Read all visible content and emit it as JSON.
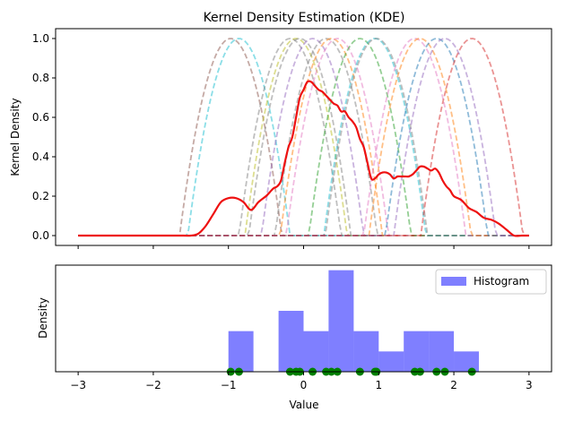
{
  "chart_data": [
    {
      "type": "line",
      "title": "Kernel Density Estimation (KDE)",
      "xlabel": "",
      "ylabel": "Kernel Density",
      "xlim": [
        -3.3,
        3.3
      ],
      "ylim": [
        -0.05,
        1.05
      ],
      "x_ticks": [
        -3,
        -2,
        -1,
        0,
        1,
        2,
        3
      ],
      "x_tick_labels_shown": false,
      "y_ticks": [
        0.0,
        0.2,
        0.4,
        0.6,
        0.8,
        1.0
      ],
      "y_tick_labels": [
        "0.0",
        "0.2",
        "0.4",
        "0.6",
        "0.8",
        "1.0"
      ],
      "grid": false,
      "kernel": {
        "shape": "epanechnikov",
        "bandwidth": 0.68,
        "line_style": "dashed",
        "alpha": 0.5,
        "samples": [
          -0.97,
          -0.86,
          -0.18,
          -0.1,
          -0.05,
          0.12,
          0.3,
          0.37,
          0.45,
          0.75,
          0.95,
          0.97,
          1.48,
          1.55,
          1.77,
          1.88,
          2.24
        ],
        "colors": [
          "#8c564b",
          "#17becf",
          "#7f7f7f",
          "#bcbd22",
          "#7f7f7f",
          "#9467bd",
          "#7f7f7f",
          "#ff7f0e",
          "#e377c2",
          "#2ca02c",
          "#17becf",
          "#7f7f7f",
          "#e377c2",
          "#ff7f0e",
          "#1f77b4",
          "#9467bd",
          "#d62728"
        ]
      },
      "density_curve": {
        "color": "#ee1111",
        "x": [
          -3.0,
          -2.5,
          -2.0,
          -1.6,
          -1.5,
          -1.4,
          -1.3,
          -1.2,
          -1.1,
          -1.0,
          -0.9,
          -0.8,
          -0.7,
          -0.6,
          -0.5,
          -0.45,
          -0.4,
          -0.35,
          -0.3,
          -0.25,
          -0.2,
          -0.15,
          -0.1,
          -0.05,
          0.0,
          0.05,
          0.1,
          0.15,
          0.2,
          0.25,
          0.3,
          0.35,
          0.4,
          0.45,
          0.5,
          0.55,
          0.6,
          0.65,
          0.7,
          0.75,
          0.8,
          0.85,
          0.9,
          0.95,
          1.0,
          1.05,
          1.1,
          1.15,
          1.2,
          1.25,
          1.3,
          1.35,
          1.4,
          1.45,
          1.5,
          1.55,
          1.6,
          1.65,
          1.7,
          1.75,
          1.8,
          1.85,
          1.9,
          1.95,
          2.0,
          2.1,
          2.2,
          2.3,
          2.4,
          2.5,
          2.6,
          2.7,
          2.8,
          2.9,
          3.0
        ],
        "y": [
          0.0,
          0.0,
          0.0,
          0.0,
          0.0,
          0.01,
          0.05,
          0.11,
          0.17,
          0.19,
          0.19,
          0.17,
          0.13,
          0.17,
          0.2,
          0.22,
          0.24,
          0.25,
          0.28,
          0.37,
          0.45,
          0.5,
          0.6,
          0.7,
          0.74,
          0.78,
          0.78,
          0.76,
          0.74,
          0.73,
          0.71,
          0.69,
          0.67,
          0.66,
          0.63,
          0.63,
          0.6,
          0.58,
          0.55,
          0.49,
          0.45,
          0.37,
          0.29,
          0.29,
          0.31,
          0.32,
          0.32,
          0.31,
          0.29,
          0.3,
          0.3,
          0.3,
          0.3,
          0.31,
          0.33,
          0.35,
          0.35,
          0.34,
          0.33,
          0.34,
          0.32,
          0.28,
          0.25,
          0.23,
          0.2,
          0.18,
          0.14,
          0.12,
          0.09,
          0.08,
          0.06,
          0.03,
          0.0,
          0.0,
          0.0
        ]
      }
    },
    {
      "type": "bar",
      "xlabel": "Value",
      "ylabel": "Density",
      "xlim": [
        -3.3,
        3.3
      ],
      "ylim": [
        0,
        1.05
      ],
      "x_ticks": [
        -3,
        -2,
        -1,
        0,
        1,
        2,
        3
      ],
      "x_tick_labels": [
        "−3",
        "−2",
        "−1",
        "0",
        "1",
        "2",
        "3"
      ],
      "y_ticks": [],
      "legend": {
        "position": "top-right",
        "entries": [
          "Histogram"
        ]
      },
      "bars": {
        "series_name": "Histogram",
        "color": "#0000ff",
        "alpha": 0.5,
        "bin_edges": [
          -1.0,
          -0.667,
          -0.333,
          0.0,
          0.333,
          0.667,
          1.0,
          1.333,
          1.667,
          2.0,
          2.333
        ],
        "heights": [
          0.4,
          0.0,
          0.6,
          0.4,
          1.0,
          0.4,
          0.2,
          0.4,
          0.4,
          0.2
        ]
      },
      "points": {
        "color": "#008000",
        "x": [
          -0.97,
          -0.86,
          -0.18,
          -0.1,
          -0.05,
          0.12,
          0.3,
          0.37,
          0.45,
          0.75,
          0.95,
          0.97,
          1.48,
          1.55,
          1.77,
          1.88,
          2.24
        ],
        "y": 0
      }
    }
  ]
}
